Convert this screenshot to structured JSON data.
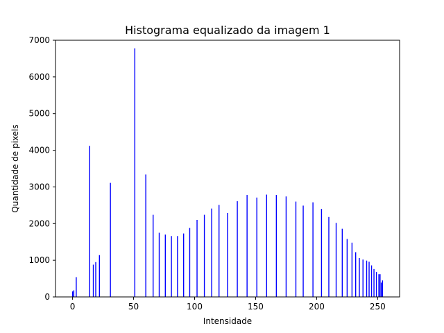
{
  "chart_data": {
    "type": "bar",
    "title": "Histograma equalizado da imagem 1",
    "xlabel": "Intensidade",
    "ylabel": "Quantidade de pixels",
    "xlim": [
      -14,
      268
    ],
    "ylim": [
      0,
      7000
    ],
    "x_ticks": [
      0,
      50,
      100,
      150,
      200,
      250
    ],
    "y_ticks": [
      0,
      1000,
      2000,
      3000,
      4000,
      5000,
      6000,
      7000
    ],
    "grid": false,
    "bar_color": "#0000ff",
    "x": [
      0,
      1,
      3,
      14,
      17,
      19,
      22,
      31,
      51,
      60,
      66,
      71,
      76,
      81,
      86,
      91,
      96,
      102,
      108,
      114,
      120,
      127,
      135,
      143,
      151,
      159,
      167,
      175,
      183,
      189,
      197,
      204,
      210,
      216,
      221,
      225,
      229,
      232,
      235,
      238,
      241,
      243,
      245,
      247,
      249,
      251,
      252,
      253,
      254
    ],
    "values": [
      150,
      180,
      540,
      4120,
      880,
      950,
      1140,
      3110,
      6780,
      3340,
      2240,
      1750,
      1700,
      1660,
      1660,
      1730,
      1880,
      2100,
      2240,
      2410,
      2510,
      2290,
      2610,
      2780,
      2710,
      2790,
      2780,
      2740,
      2600,
      2490,
      2580,
      2400,
      2180,
      2020,
      1860,
      1580,
      1480,
      1220,
      1060,
      1020,
      990,
      960,
      860,
      760,
      680,
      620,
      620,
      390,
      450
    ]
  }
}
